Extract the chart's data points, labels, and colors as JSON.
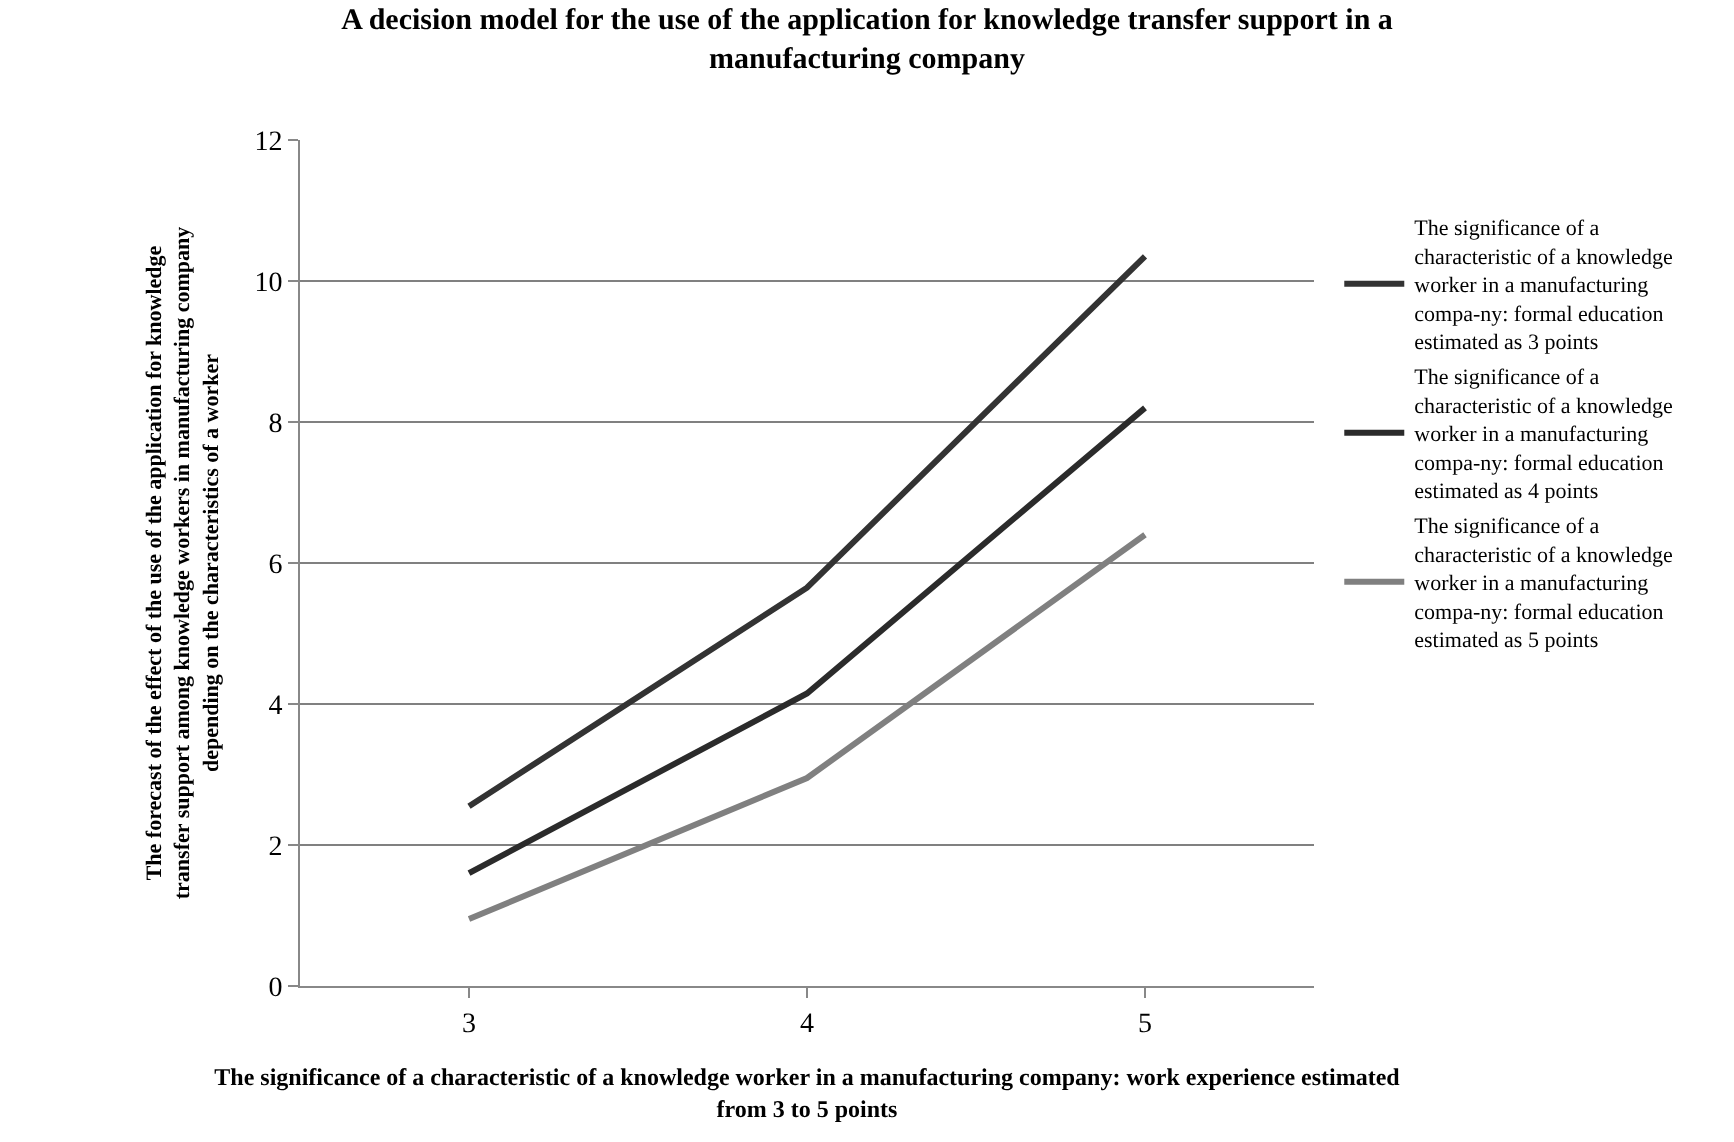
{
  "chart_data": {
    "type": "line",
    "title": "A decision model for the use of the application for knowledge transfer support in a manufacturing company",
    "xlabel": "The significance of a characteristic of a knowledge worker in a manufacturing company: work experience estimated from 3 to 5 points",
    "ylabel": "The forecast of the effect of the use of the application for knowledge transfer support among knowledge workers in manufacturing company depending on the characteristics of a worker",
    "categories": [
      "3",
      "4",
      "5"
    ],
    "series": [
      {
        "name": "The significance of a characteristic of a knowledge worker in a manufacturing compa-ny: formal education estimated as 3 points",
        "color": "#333333",
        "values": [
          2.55,
          5.65,
          10.35
        ]
      },
      {
        "name": "The significance of a characteristic of a knowledge worker in a manufacturing compa-ny: formal education estimated as 4 points",
        "color": "#2b2b2b",
        "values": [
          1.6,
          4.15,
          8.2
        ]
      },
      {
        "name": "The significance of a characteristic of a knowledge worker in a manufacturing compa-ny: formal education estimated as 5 points",
        "color": "#808080",
        "values": [
          0.95,
          2.95,
          6.4
        ]
      }
    ],
    "ylim": [
      0,
      12
    ],
    "yticks": [
      0,
      2,
      4,
      6,
      8,
      10,
      12
    ],
    "grid": "y",
    "legend": "right",
    "marker": "none",
    "line_style": "solid"
  }
}
